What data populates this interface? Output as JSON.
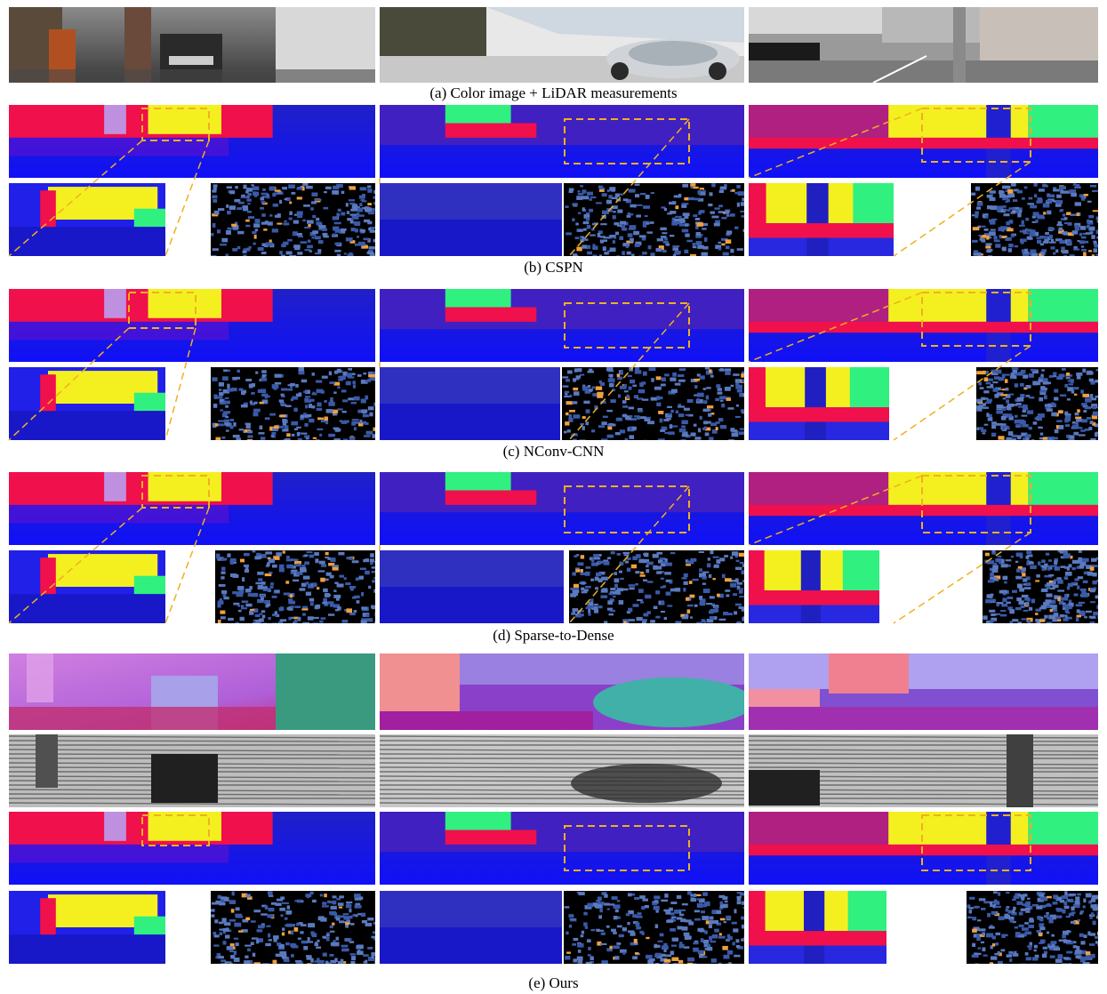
{
  "figure": {
    "captions": {
      "a": "(a) Color image + LiDAR measurements",
      "b": "(b) CSPN",
      "c": "(c) NConv-CNN",
      "d": "(d) Sparse-to-Dense",
      "e": "(e) Ours"
    },
    "colors": {
      "depth_blue": "#1c1cf0",
      "depth_red": "#f0104c",
      "depth_yellow": "#f4f020",
      "depth_green": "#30f080",
      "dashed_box": "#f0b020",
      "normal_pink": "#e070e0",
      "normal_teal": "#30a090",
      "error_black": "#000000",
      "error_blue": "#3a5aa8"
    }
  }
}
